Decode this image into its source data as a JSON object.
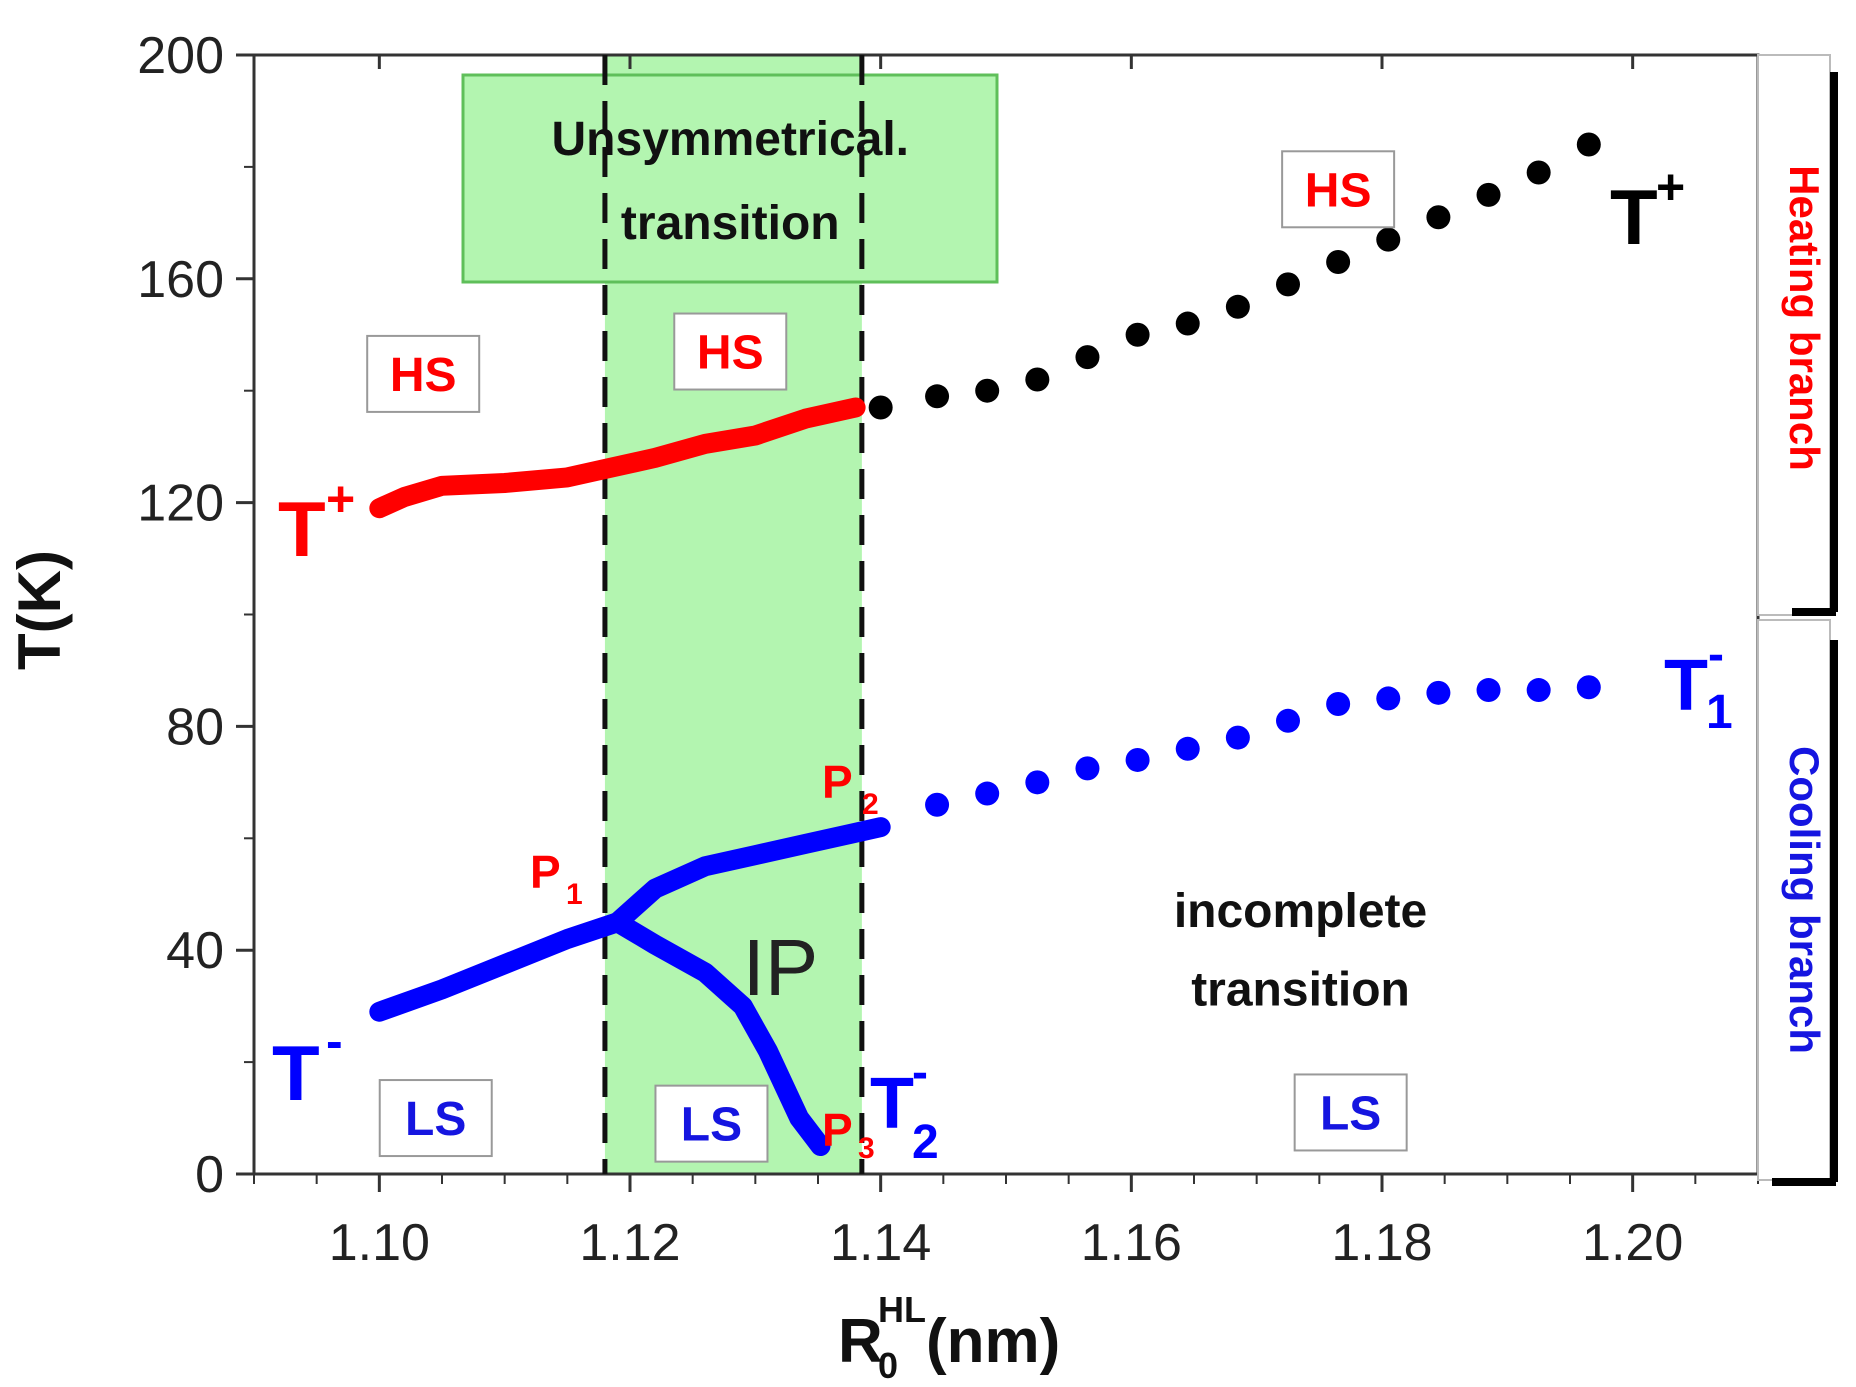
{
  "chart_data": {
    "type": "line",
    "xlabel": "R",
    "xlabel_sub": "0",
    "xlabel_sup": "HL",
    "xlabel_unit": "(nm)",
    "ylabel": "T(K)",
    "xlim": [
      1.09,
      1.21
    ],
    "ylim": [
      0,
      200
    ],
    "xticks": [
      1.1,
      1.12,
      1.14,
      1.16,
      1.18,
      1.2
    ],
    "xtick_labels": [
      "1.10",
      "1.12",
      "1.14",
      "1.16",
      "1.18",
      "1.20"
    ],
    "yticks": [
      0,
      40,
      80,
      120,
      160,
      200
    ],
    "ytick_labels": [
      "0",
      "40",
      "80",
      "120",
      "160",
      "200"
    ],
    "colors": {
      "heating": "#ff0000",
      "cooling": "#0000ff",
      "dots_heating": "#000000",
      "band": "#b3f5b0",
      "label_red": "#ff0000",
      "label_blue": "#1515e0"
    },
    "band": {
      "x_start": 1.118,
      "x_end": 1.1385,
      "y_start": 0,
      "y_end": 200
    },
    "dashed_lines": [
      1.118,
      1.1385
    ],
    "series": [
      {
        "name": "T+ heating (solid)",
        "style": "solid",
        "color": "#ff0000",
        "x": [
          1.1,
          1.102,
          1.105,
          1.11,
          1.115,
          1.118,
          1.122,
          1.126,
          1.13,
          1.134,
          1.138
        ],
        "y": [
          119,
          121,
          123,
          123.5,
          124.5,
          126,
          128,
          130.5,
          132,
          135,
          137
        ]
      },
      {
        "name": "T+ heating (dotted)",
        "style": "dots",
        "color": "#000000",
        "x": [
          1.14,
          1.1445,
          1.1485,
          1.1525,
          1.1565,
          1.1605,
          1.1645,
          1.1685,
          1.1725,
          1.1765,
          1.1805,
          1.1845,
          1.1885,
          1.1925,
          1.1965
        ],
        "y": [
          137,
          139,
          140,
          142,
          146,
          150,
          152,
          155,
          159,
          163,
          167,
          171,
          175,
          179,
          184
        ]
      },
      {
        "name": "T- cooling (solid, lower)",
        "style": "solid",
        "color": "#0000ff",
        "x": [
          1.1,
          1.105,
          1.11,
          1.115,
          1.119
        ],
        "y": [
          29,
          33,
          37.5,
          42,
          45
        ]
      },
      {
        "name": "T1- cooling (solid, upper branch)",
        "style": "solid",
        "color": "#0000ff",
        "x": [
          1.119,
          1.122,
          1.126,
          1.13,
          1.134,
          1.138,
          1.14
        ],
        "y": [
          45,
          51,
          55,
          57,
          59,
          61,
          62
        ]
      },
      {
        "name": "T2- cooling (solid, lower branch)",
        "style": "solid",
        "color": "#0000ff",
        "x": [
          1.119,
          1.122,
          1.126,
          1.129,
          1.131,
          1.1335,
          1.1352
        ],
        "y": [
          45,
          41,
          36,
          30,
          22,
          10,
          5
        ]
      },
      {
        "name": "T1- cooling (dotted)",
        "style": "dots",
        "color": "#0000ff",
        "x": [
          1.1445,
          1.1485,
          1.1525,
          1.1565,
          1.1605,
          1.1645,
          1.1685,
          1.1725,
          1.1765,
          1.1805,
          1.1845,
          1.1885,
          1.1925,
          1.1965
        ],
        "y": [
          66,
          68,
          70,
          72.5,
          74,
          76,
          78,
          81,
          84,
          85,
          86,
          86.5,
          86.5,
          87
        ]
      }
    ],
    "annotations": [
      {
        "id": "HS1",
        "text": "HS",
        "x": 1.1035,
        "y": 143,
        "boxed": true,
        "color": "#ff0000"
      },
      {
        "id": "HS2",
        "text": "HS",
        "x": 1.128,
        "y": 147,
        "boxed": true,
        "color": "#ff0000"
      },
      {
        "id": "HS3",
        "text": "HS",
        "x": 1.1765,
        "y": 176,
        "boxed": true,
        "color": "#ff0000"
      },
      {
        "id": "LS1",
        "text": "LS",
        "x": 1.1045,
        "y": 10,
        "boxed": true,
        "color": "#1515e0"
      },
      {
        "id": "LS2",
        "text": "LS",
        "x": 1.1265,
        "y": 9,
        "boxed": true,
        "color": "#1515e0"
      },
      {
        "id": "LS3",
        "text": "LS",
        "x": 1.1775,
        "y": 11,
        "boxed": true,
        "color": "#1515e0"
      },
      {
        "id": "IP",
        "text": "IP",
        "x": 1.132,
        "y": 37,
        "color": "#222222"
      },
      {
        "id": "incomplete1",
        "text": "incomplete",
        "x": 1.1735,
        "y": 47,
        "color": "#111111",
        "bold": true
      },
      {
        "id": "incomplete2",
        "text": "transition",
        "x": 1.1735,
        "y": 33,
        "color": "#111111",
        "bold": true
      },
      {
        "id": "unsym1",
        "text": "Unsymmetrical.",
        "x": 1.128,
        "y": 185,
        "color": "#111111",
        "bold": true
      },
      {
        "id": "unsym2",
        "text": "transition",
        "x": 1.128,
        "y": 170,
        "color": "#111111",
        "bold": true
      }
    ],
    "curve_labels": [
      {
        "id": "Tplus_left",
        "base": "T",
        "sup": "+",
        "color": "#ff0000"
      },
      {
        "id": "Tplus_right",
        "base": "T",
        "sup": "+",
        "color": "#000000"
      },
      {
        "id": "Tminus_left",
        "base": "T",
        "sup": "-",
        "color": "#0000ff"
      },
      {
        "id": "T1minus",
        "base": "T",
        "sup": "-",
        "sub": "1",
        "color": "#0000ff"
      },
      {
        "id": "T2minus",
        "base": "T",
        "sup": "-",
        "sub": "2",
        "color": "#0000ff"
      },
      {
        "id": "P1",
        "base": "P",
        "sub": "1",
        "color": "#ff0000"
      },
      {
        "id": "P2",
        "base": "P",
        "sub": "2",
        "color": "#ff0000"
      },
      {
        "id": "P3",
        "base": "P",
        "sub": "3",
        "color": "#ff0000"
      }
    ],
    "side_labels": {
      "heating": "Heating branch",
      "cooling": "Cooling branch"
    }
  }
}
